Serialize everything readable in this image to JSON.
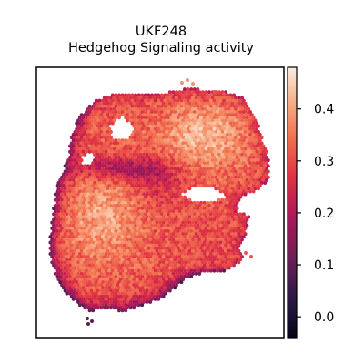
{
  "chart_data": {
    "type": "heatmap",
    "title_lines": [
      "UKF248",
      "Hedgehog Signaling activity"
    ],
    "xlabel": "",
    "ylabel": "",
    "grid": false,
    "colormap": "rocket",
    "colorbar": {
      "range": [
        -0.04,
        0.48
      ],
      "ticks": [
        0.0,
        0.1,
        0.2,
        0.3,
        0.4
      ],
      "tick_labels": [
        "0.0",
        "0.1",
        "0.2",
        "0.3",
        "0.4"
      ],
      "placement": "right"
    },
    "colormap_stops": [
      {
        "v": 0.0,
        "color": "#03051a"
      },
      {
        "v": 0.15,
        "color": "#2e1a47"
      },
      {
        "v": 0.3,
        "color": "#701f57"
      },
      {
        "v": 0.45,
        "color": "#ae1759"
      },
      {
        "v": 0.6,
        "color": "#e13342"
      },
      {
        "v": 0.75,
        "color": "#f37651"
      },
      {
        "v": 0.88,
        "color": "#f6b48e"
      },
      {
        "v": 1.0,
        "color": "#faebdd"
      }
    ],
    "tissue_region_values": {
      "upper_lobe_center": 0.38,
      "lower_left_center": 0.36,
      "lower_right": 0.3,
      "left_edge": 0.12,
      "bottom_edge": 0.08,
      "upper_band_dark": 0.16,
      "overall_mean": 0.31
    }
  }
}
